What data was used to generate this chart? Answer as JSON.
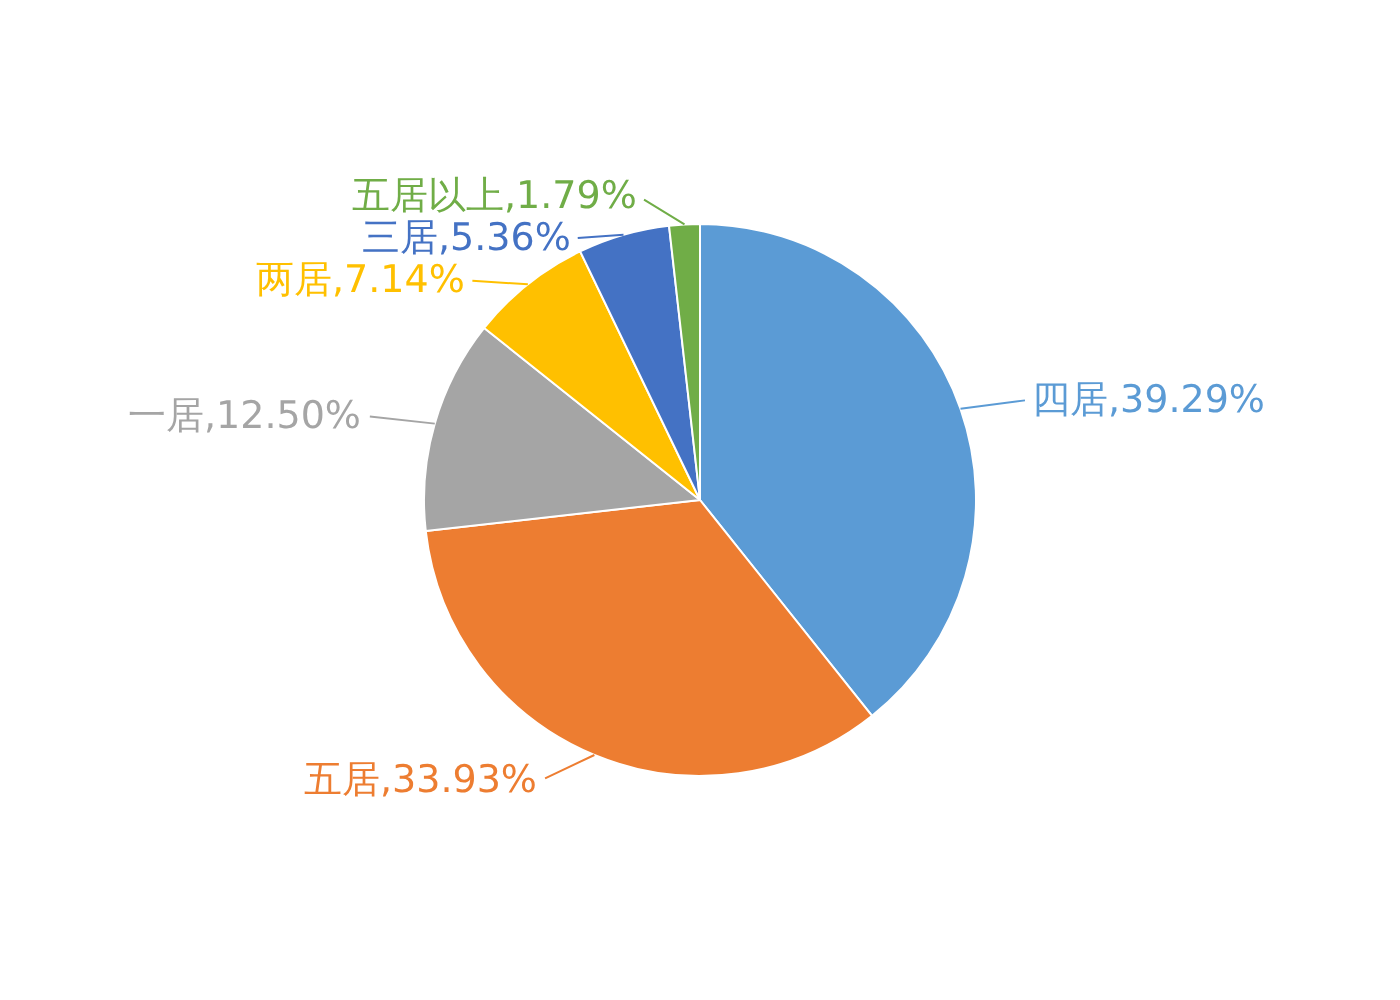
{
  "chart_data": {
    "type": "pie",
    "categories": [
      "四居",
      "五居",
      "一居",
      "两居",
      "三居",
      "五居以上"
    ],
    "values": [
      39.29,
      33.93,
      12.5,
      7.14,
      5.36,
      1.79
    ],
    "colors": [
      "#5b9bd5",
      "#ed7d31",
      "#a5a5a5",
      "#ffc000",
      "#4472c4",
      "#70ad47"
    ],
    "value_labels": [
      "39.29%",
      "33.93%",
      "12.50%",
      "7.14%",
      "5.36%",
      "1.79%"
    ]
  }
}
